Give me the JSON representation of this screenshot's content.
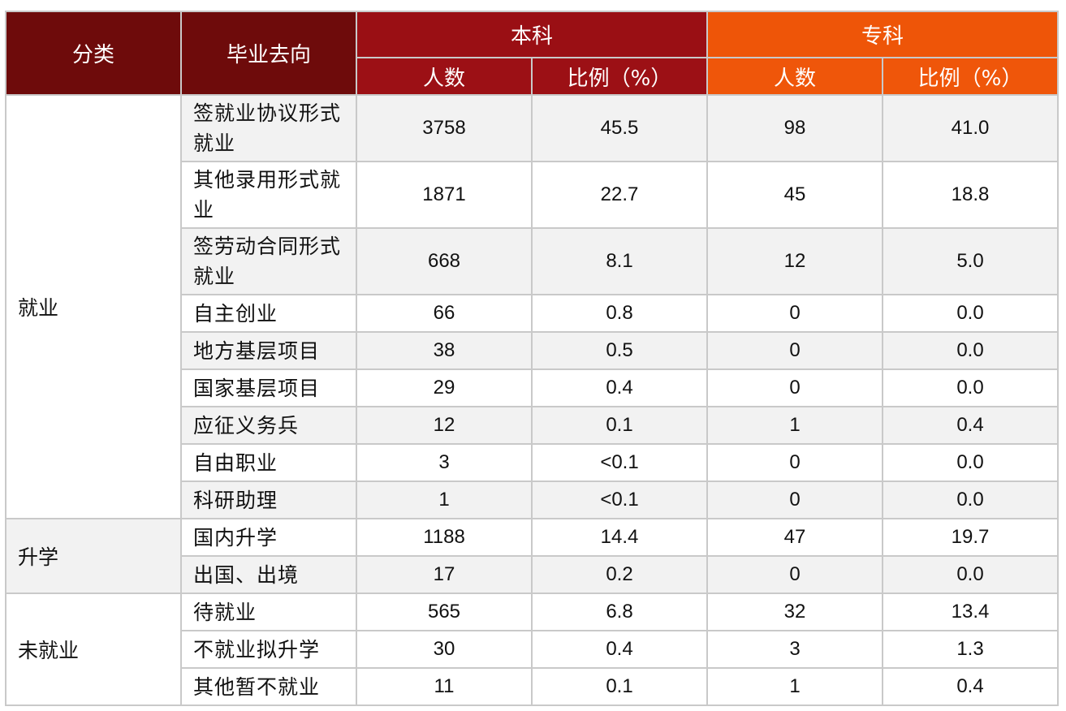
{
  "header": {
    "category": "分类",
    "destination": "毕业去向",
    "undergrad": "本科",
    "college": "专科",
    "count": "人数",
    "ratio": "比例（%）"
  },
  "groups": [
    {
      "name": "就业",
      "rows": [
        {
          "dest": "签就业协议形式就业",
          "bk_n": "3758",
          "bk_p": "45.5",
          "zk_n": "98",
          "zk_p": "41.0"
        },
        {
          "dest": "其他录用形式就业",
          "bk_n": "1871",
          "bk_p": "22.7",
          "zk_n": "45",
          "zk_p": "18.8"
        },
        {
          "dest": "签劳动合同形式就业",
          "bk_n": "668",
          "bk_p": "8.1",
          "zk_n": "12",
          "zk_p": "5.0"
        },
        {
          "dest": "自主创业",
          "bk_n": "66",
          "bk_p": "0.8",
          "zk_n": "0",
          "zk_p": "0.0"
        },
        {
          "dest": "地方基层项目",
          "bk_n": "38",
          "bk_p": "0.5",
          "zk_n": "0",
          "zk_p": "0.0"
        },
        {
          "dest": "国家基层项目",
          "bk_n": "29",
          "bk_p": "0.4",
          "zk_n": "0",
          "zk_p": "0.0"
        },
        {
          "dest": "应征义务兵",
          "bk_n": "12",
          "bk_p": "0.1",
          "zk_n": "1",
          "zk_p": "0.4"
        },
        {
          "dest": "自由职业",
          "bk_n": "3",
          "bk_p": "<0.1",
          "zk_n": "0",
          "zk_p": "0.0"
        },
        {
          "dest": "科研助理",
          "bk_n": "1",
          "bk_p": "<0.1",
          "zk_n": "0",
          "zk_p": "0.0"
        }
      ]
    },
    {
      "name": "升学",
      "rows": [
        {
          "dest": "国内升学",
          "bk_n": "1188",
          "bk_p": "14.4",
          "zk_n": "47",
          "zk_p": "19.7"
        },
        {
          "dest": "出国、出境",
          "bk_n": "17",
          "bk_p": "0.2",
          "zk_n": "0",
          "zk_p": "0.0"
        }
      ]
    },
    {
      "name": "未就业",
      "rows": [
        {
          "dest": "待就业",
          "bk_n": "565",
          "bk_p": "6.8",
          "zk_n": "32",
          "zk_p": "13.4"
        },
        {
          "dest": "不就业拟升学",
          "bk_n": "30",
          "bk_p": "0.4",
          "zk_n": "3",
          "zk_p": "1.3"
        },
        {
          "dest": "其他暂不就业",
          "bk_n": "11",
          "bk_p": "0.1",
          "zk_n": "1",
          "zk_p": "0.4"
        }
      ]
    }
  ]
}
